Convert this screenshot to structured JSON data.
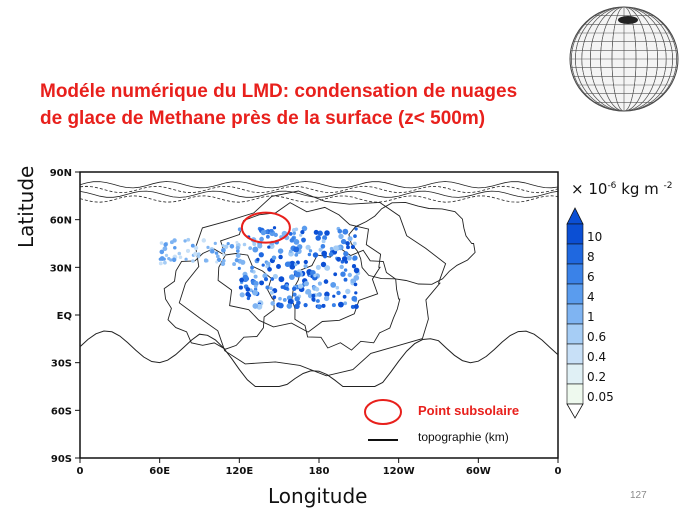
{
  "slide": {
    "title_line1": "Modéle numérique  du LMD: condensation de nuages",
    "title_line2": "de glace de Methane près de la surface (z< 500m)",
    "page_number": "127"
  },
  "chart_data": {
    "type": "heatmap",
    "xlabel": "Longitude",
    "ylabel": "Latitude",
    "x_tick_labels": [
      "0",
      "60E",
      "120E",
      "180",
      "120W",
      "60W",
      "0"
    ],
    "y_tick_labels": [
      "90N",
      "60N",
      "30N",
      "EQ",
      "30S",
      "60S",
      "90S"
    ],
    "xlim": [
      0,
      360
    ],
    "ylim": [
      -90,
      90
    ],
    "units": {
      "prefix": "× 10",
      "exp1": "-6",
      "middle": " kg m ",
      "exp2": "-2"
    },
    "colorbar_levels": [
      "10",
      "8",
      "6",
      "4",
      "1",
      "0.6",
      "0.4",
      "0.2",
      "0.05"
    ],
    "colorbar_colors": [
      "#0b4fd4",
      "#1f68e0",
      "#3a82e8",
      "#5a9cee",
      "#7fb4f2",
      "#a6cdf5",
      "#c8e0f7",
      "#e0f0f5",
      "#eef9ee"
    ],
    "colors": {
      "accent": "#e8201c"
    },
    "legend": {
      "subsolar_label": "Point subsolaire",
      "topo_label": "topographie (km)"
    }
  }
}
